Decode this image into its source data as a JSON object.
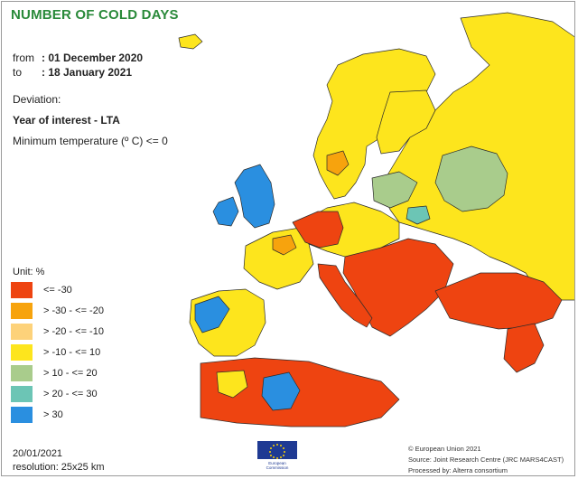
{
  "title": "NUMBER OF COLD DAYS",
  "period": {
    "from_label": "from",
    "from_value": ": 01 December 2020",
    "to_label": "to",
    "to_value": ": 18 January 2021"
  },
  "deviation_label": "Deviation:",
  "year_of_interest": "Year of interest - LTA",
  "min_temp": "Minimum temperature (º C) <= 0",
  "legend": {
    "unit": "Unit:  %",
    "items": [
      {
        "label": "<= -30",
        "color": "#ee4411"
      },
      {
        "label": "> -30 - <= -20",
        "color": "#f7a30d"
      },
      {
        "label": "> -20 - <= -10",
        "color": "#fdd27a"
      },
      {
        "label": "> -10 - <= 10",
        "color": "#fde51d"
      },
      {
        "label": "> 10 - <= 20",
        "color": "#a9cc8c"
      },
      {
        "label": "> 20 - <= 30",
        "color": "#6cc5b5"
      },
      {
        "label": "> 30",
        "color": "#2a8fe0"
      }
    ]
  },
  "footer": {
    "date": "20/01/2021",
    "resolution": "resolution:  25x25 km"
  },
  "credits": [
    "© European Union 2021",
    "Source: Joint Research Centre (JRC MARS4CAST)",
    "Processed by: Alterra consortium"
  ],
  "logo_text": [
    "European",
    "Commission"
  ],
  "colors": {
    "sea": "#ffffff",
    "border": "#2b2b2b",
    "title": "#2a8a3a"
  }
}
